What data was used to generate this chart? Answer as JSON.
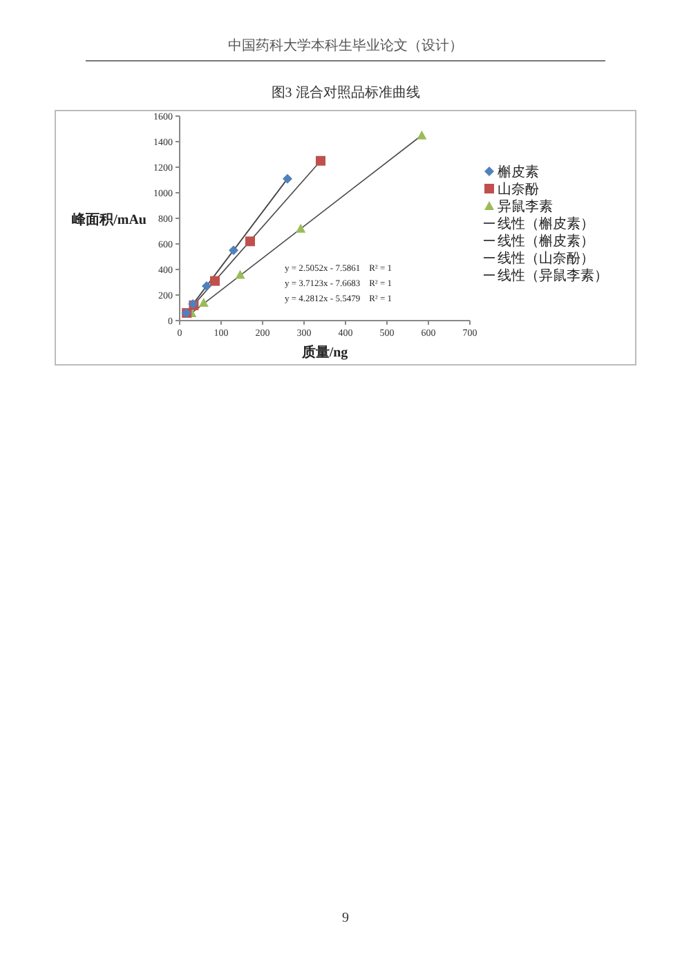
{
  "chart_data": {
    "type": "scatter",
    "title": "图3  混合对照品标准曲线",
    "xlabel": "质量/ng",
    "ylabel": "峰面积/mAu",
    "annotations": [
      "中国药科大学本科生毕业论文（设计）",
      "9",
      "y = 2.5052x - 7.5861    R² = 1",
      "y = 3.7123x - 7.6683    R² = 1",
      "y = 4.2812x - 5.5479    R² = 1"
    ],
    "xlim": [
      0,
      700
    ],
    "xticks": [
      0,
      100,
      200,
      300,
      400,
      500,
      600,
      700
    ],
    "ylim": [
      0,
      1600
    ],
    "yticks": [
      0,
      200,
      400,
      600,
      800,
      1000,
      1200,
      1400,
      1600
    ],
    "grid": false,
    "legend": "right",
    "series": [
      {
        "name": "槲皮素",
        "type": "scatter",
        "marker": "diamond",
        "color": "#4f81bd",
        "x": [
          16,
          32,
          65,
          130,
          260
        ],
        "values": [
          60,
          130,
          270,
          550,
          1110
        ]
      },
      {
        "name": "山奈酚",
        "type": "scatter",
        "marker": "square",
        "color": "#c0504d",
        "x": [
          17,
          34,
          85,
          170,
          340
        ],
        "values": [
          60,
          120,
          310,
          620,
          1250
        ]
      },
      {
        "name": "异鼠李素",
        "type": "scatter",
        "marker": "triangle",
        "color": "#9bbb59",
        "x": [
          29,
          58,
          146,
          292,
          584
        ],
        "values": [
          60,
          140,
          360,
          720,
          1450
        ]
      },
      {
        "name": "线性（槲皮素）",
        "type": "line",
        "color": "#4a4a4a",
        "x": [
          16,
          260
        ],
        "values": [
          60,
          1110
        ]
      },
      {
        "name": "线性（槲皮素）",
        "type": "line",
        "color": "#4a4a4a",
        "x": [
          16,
          260
        ],
        "values": [
          60,
          1110
        ]
      },
      {
        "name": "线性（山奈酚）",
        "type": "line",
        "color": "#4a4a4a",
        "x": [
          17,
          340
        ],
        "values": [
          60,
          1250
        ]
      },
      {
        "name": "线性（异鼠李素）",
        "type": "line",
        "color": "#4a4a4a",
        "x": [
          29,
          584
        ],
        "values": [
          60,
          1450
        ]
      }
    ]
  }
}
